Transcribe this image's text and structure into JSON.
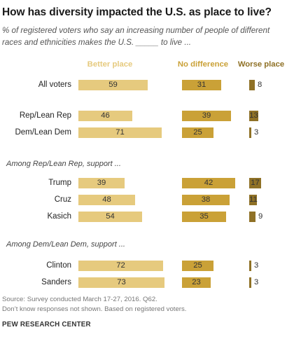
{
  "title": "How has diversity impacted the U.S. as place to live?",
  "subtitle": "% of registered voters who say an increasing number of people of different races and ethnicities makes the U.S. _____ to live ...",
  "colors": {
    "better": "#e6ca7e",
    "nodiff": "#caa137",
    "worse": "#8f7126"
  },
  "chart_data": {
    "type": "bar",
    "series": [
      {
        "name": "Better place",
        "values": [
          59,
          46,
          71,
          39,
          48,
          54,
          72,
          73
        ]
      },
      {
        "name": "No difference",
        "values": [
          31,
          39,
          25,
          42,
          38,
          35,
          25,
          23
        ]
      },
      {
        "name": "Worse place",
        "values": [
          8,
          13,
          3,
          17,
          11,
          9,
          3,
          3
        ]
      }
    ],
    "categories": [
      "All voters",
      "Rep/Lean Rep",
      "Dem/Lean Dem",
      "Trump",
      "Cruz",
      "Kasich",
      "Clinton",
      "Sanders"
    ],
    "groups": [
      {
        "label": "Among Rep/Lean Rep, support ...",
        "categories": [
          "Trump",
          "Cruz",
          "Kasich"
        ]
      },
      {
        "label": "Among Dem/Lean Dem, support ...",
        "categories": [
          "Clinton",
          "Sanders"
        ]
      }
    ],
    "title": "How has diversity impacted the U.S. as place to live?",
    "xlabel": "",
    "ylabel": ""
  },
  "footer": {
    "source": "Source: Survey conducted March 17-27, 2016. Q62.",
    "note": "Don’t know responses not shown. Based on registered voters.",
    "brand": "PEW RESEARCH CENTER"
  }
}
